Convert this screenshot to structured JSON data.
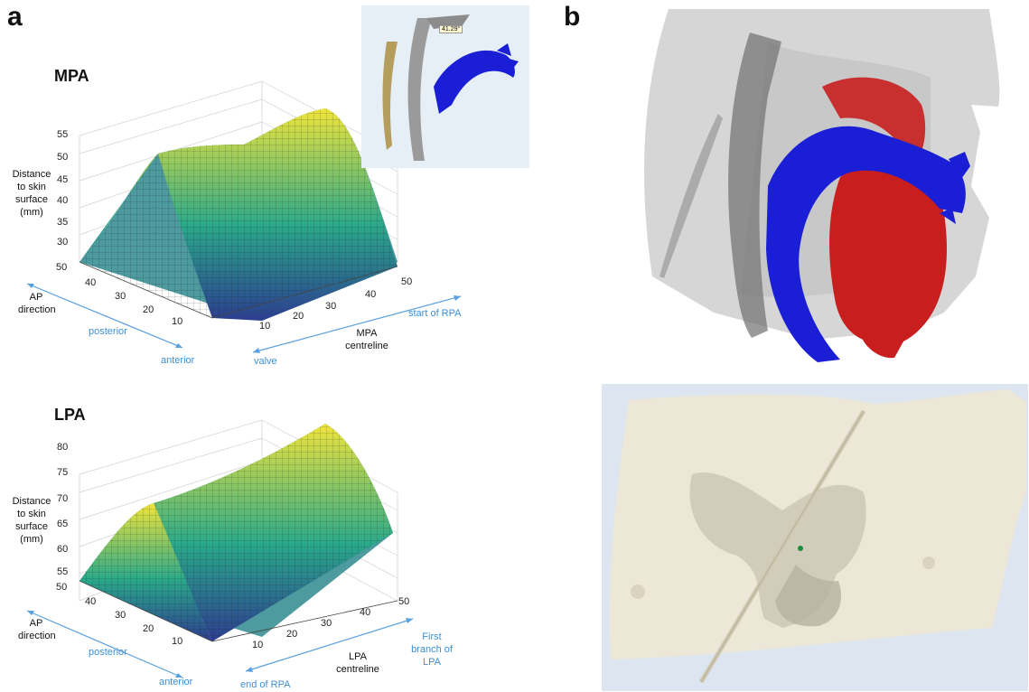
{
  "panels": {
    "a_label": "a",
    "b_label": "b"
  },
  "mpa": {
    "title": "MPA",
    "zlabel": [
      "Distance",
      "to skin",
      "surface",
      "(mm)"
    ],
    "z_ticks": [
      "55",
      "50",
      "45",
      "40",
      "35",
      "30"
    ],
    "ap_ticks": [
      "50",
      "40",
      "30",
      "20",
      "10"
    ],
    "centreline_ticks": [
      "10",
      "20",
      "30",
      "40",
      "50"
    ],
    "ap_label": [
      "AP",
      "direction"
    ],
    "posterior": "posterior",
    "anterior": "anterior",
    "centre_label": [
      "MPA",
      "centreline"
    ],
    "start_label": "start of RPA",
    "valve_label": "valve"
  },
  "lpa": {
    "title": "LPA",
    "zlabel": [
      "Distance",
      "to skin",
      "surface",
      "(mm)"
    ],
    "z_ticks": [
      "80",
      "75",
      "70",
      "65",
      "60",
      "55"
    ],
    "ap_ticks": [
      "50",
      "40",
      "30",
      "20",
      "10"
    ],
    "centreline_ticks": [
      "10",
      "20",
      "30",
      "40",
      "50"
    ],
    "ap_label": [
      "AP",
      "direction"
    ],
    "posterior": "posterior",
    "anterior": "anterior",
    "centre_label": [
      "LPA",
      "centreline"
    ],
    "first_label": [
      "First",
      "branch of",
      "LPA"
    ],
    "end_label": "end of RPA"
  },
  "inset": {
    "angle_label": "41.29°"
  },
  "colors": {
    "surface_low": "#2c3d8f",
    "surface_mid": "#2aa98a",
    "surface_high": "#f0e43a",
    "vessel_blue": "#1a1fd6",
    "heart_red": "#c81e1e",
    "bone_grey": "#a7a7a7",
    "skin": "#ece7d6",
    "annotation_blue": "#3b8fd6"
  }
}
